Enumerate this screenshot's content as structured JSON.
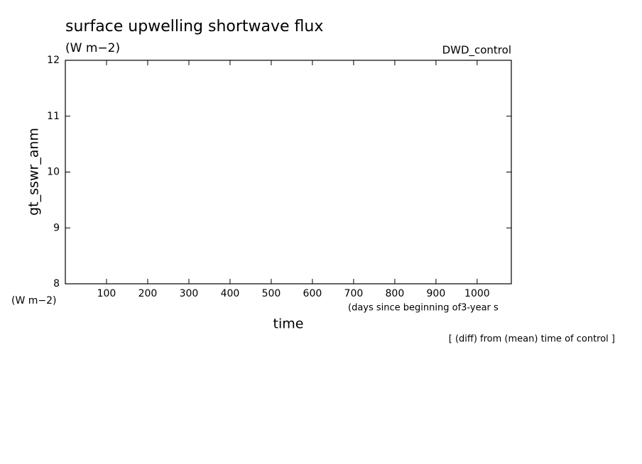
{
  "chart_data": {
    "type": "line",
    "title": "surface upwelling shortwave flux",
    "subtitle": "(W m−2)",
    "experiment": "DWD_control",
    "ylabel": "gt_sswr_anm",
    "yunit": "(W m−2)",
    "xlabel": "time",
    "xunit": "(days since beginning of3-year s",
    "note": "[ (diff) from (mean) time of control ]",
    "xlim": [
      0,
      1083
    ],
    "xticks": [
      100,
      200,
      300,
      400,
      500,
      600,
      700,
      800,
      900,
      1000
    ],
    "ylim": [
      8,
      12
    ],
    "yticks": [
      8,
      9,
      10,
      11,
      12
    ],
    "series": []
  }
}
